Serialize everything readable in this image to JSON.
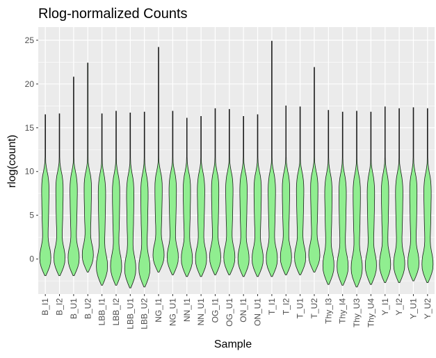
{
  "chart_data": {
    "type": "violin",
    "title": "Rlog-normalized Counts",
    "xlabel": "Sample",
    "ylabel": "rlog(count)",
    "ylim": [
      -4.0,
      26.5
    ],
    "yticks": [
      0,
      5,
      10,
      15,
      20,
      25
    ],
    "grid": true,
    "legend": "none",
    "fill_color": "#90EE90",
    "panel_color": "#EBEBEB",
    "grid_color": "#FFFFFF",
    "categories": [
      "B_I1",
      "B_I2",
      "B_U1",
      "B_U2",
      "LBB_I1",
      "LBB_I2",
      "LBB_U1",
      "LBB_U2",
      "NG_I1",
      "NG_U1",
      "NN_I1",
      "NN_U1",
      "OG_I1",
      "OG_U1",
      "ON_I1",
      "ON_U1",
      "T_I1",
      "T_I2",
      "T_U1",
      "T_U2",
      "Thy_I3",
      "Thy_I4",
      "Thy_U3",
      "Thy_U4",
      "Y_I1",
      "Y_I2",
      "Y_U1",
      "Y_U2"
    ],
    "series": [
      {
        "values_min": [
          -1.9,
          -1.9,
          -1.9,
          -1.5,
          -3.0,
          -3.0,
          -3.3,
          -3.2,
          -1.5,
          -1.8,
          -2.0,
          -2.0,
          -1.8,
          -1.8,
          -2.0,
          -2.0,
          -2.0,
          -1.8,
          -1.8,
          -1.5,
          -2.9,
          -3.0,
          -3.2,
          -2.9,
          -2.7,
          -2.7,
          -2.5,
          -2.7
        ],
        "values_max": [
          16.5,
          16.6,
          20.8,
          22.4,
          16.6,
          16.9,
          16.7,
          16.8,
          24.2,
          16.9,
          16.1,
          16.3,
          17.2,
          17.1,
          16.3,
          16.5,
          24.9,
          17.5,
          17.4,
          21.9,
          17.0,
          16.8,
          16.9,
          16.8,
          17.4,
          17.2,
          17.3,
          17.2
        ]
      }
    ]
  }
}
